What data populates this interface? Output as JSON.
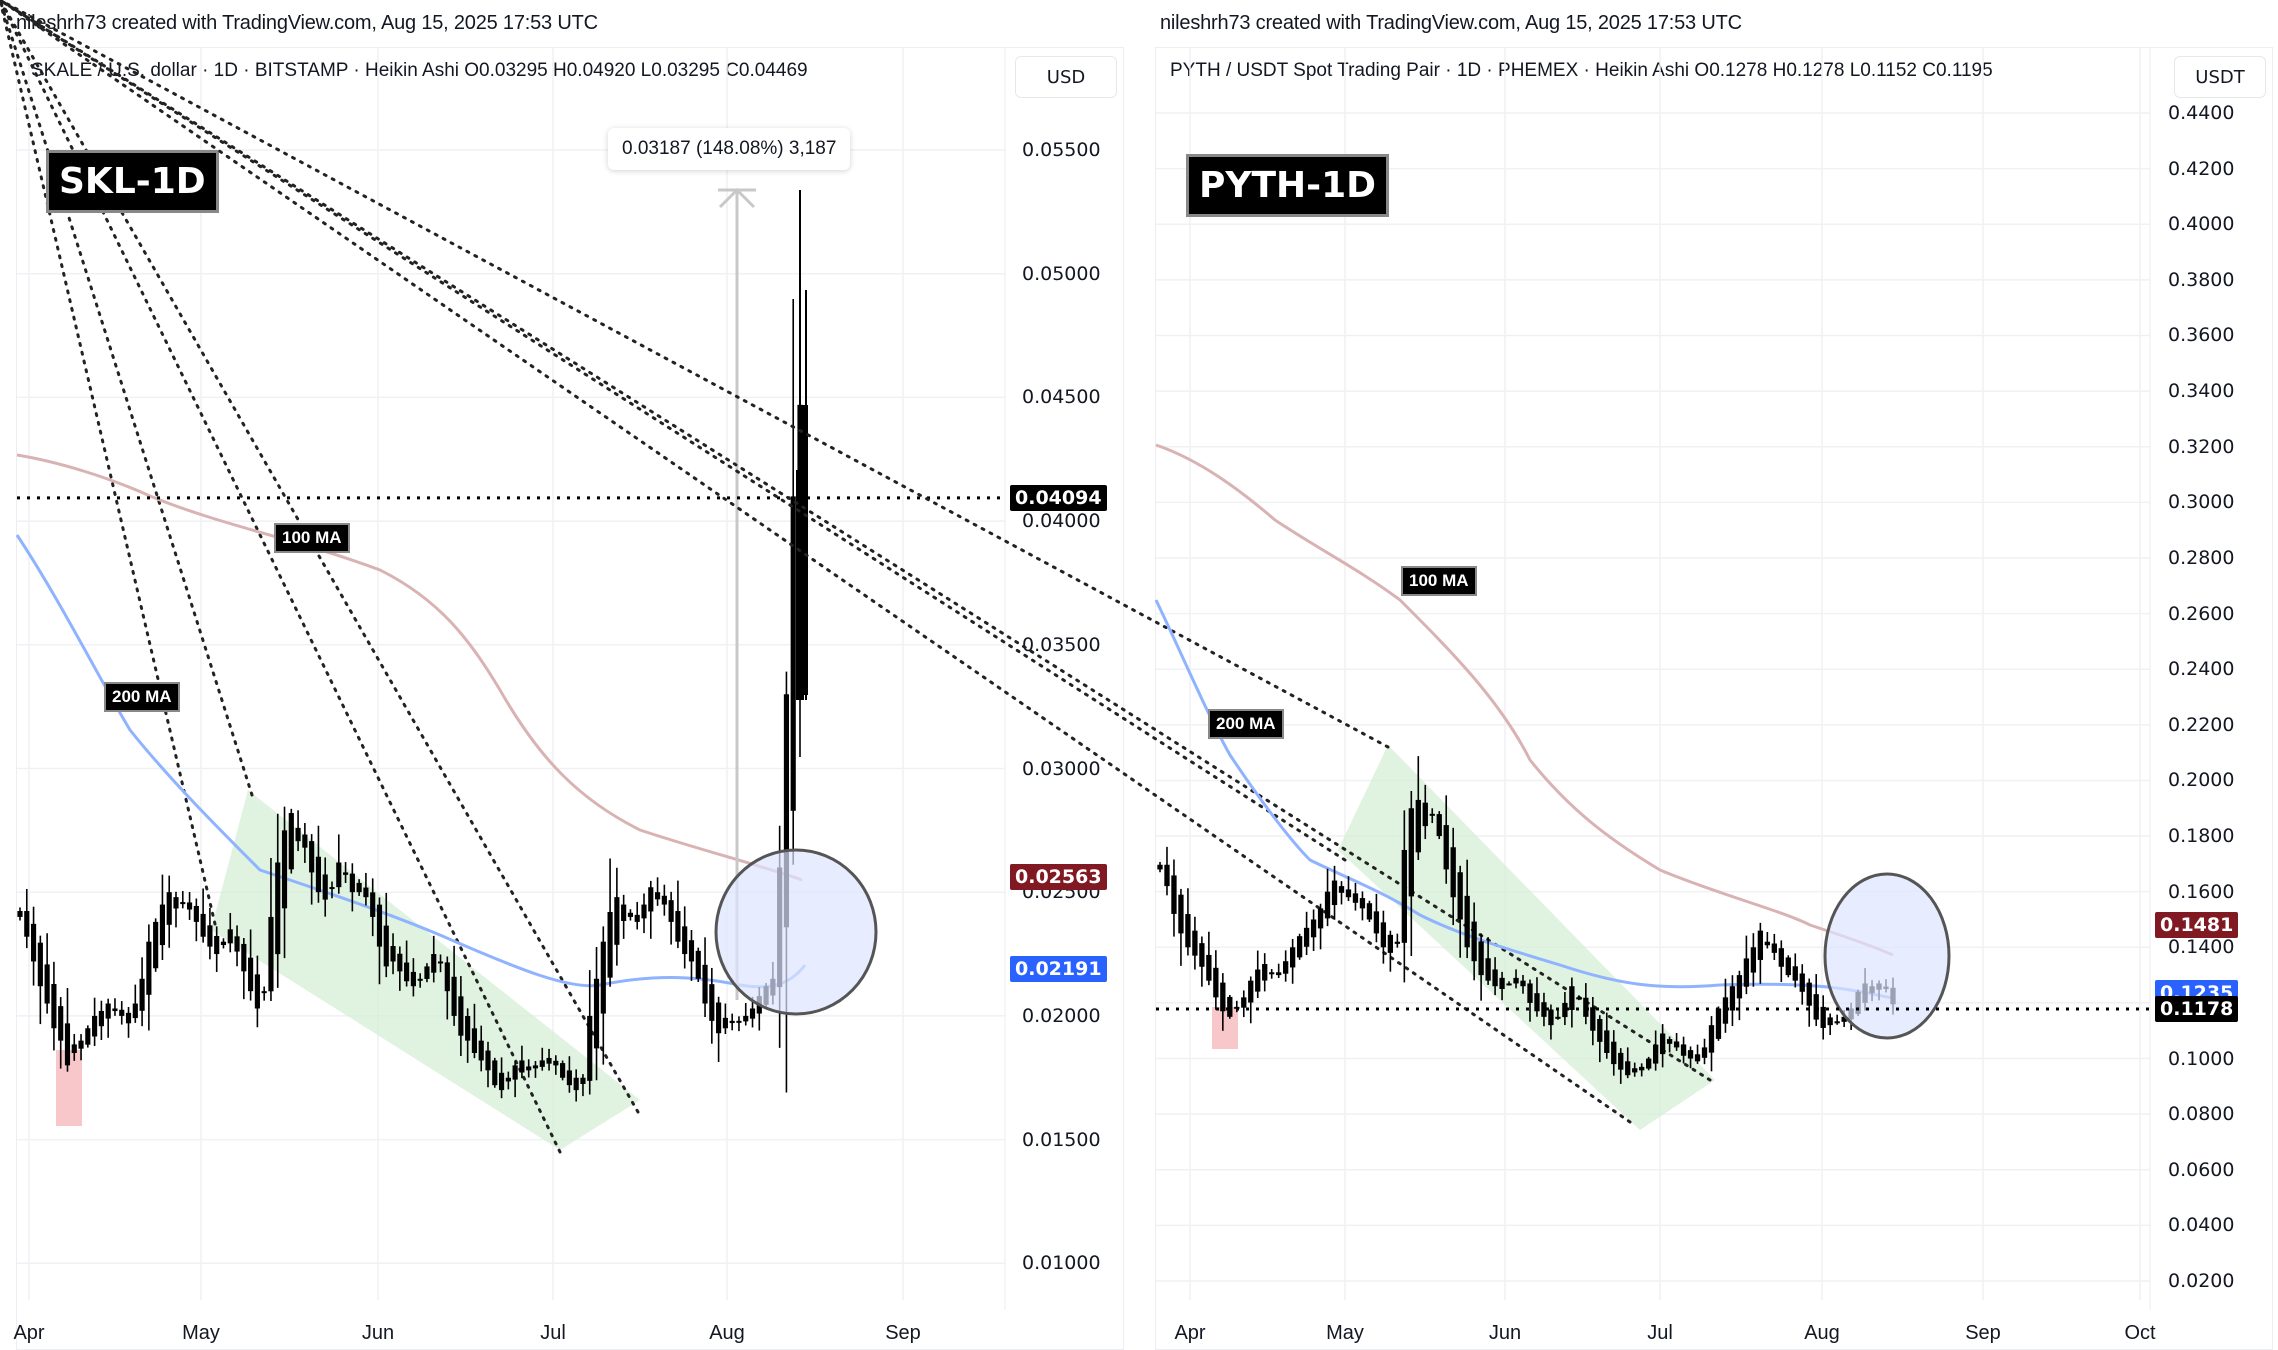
{
  "credits": {
    "left": "nileshrh73 created with TradingView.com, Aug 15, 2025 17:53 UTC",
    "right": "nileshrh73 created with TradingView.com, Aug 15, 2025 17:53 UTC"
  },
  "charts": {
    "skl": {
      "legend": "SKALE / U.S. dollar · 1D · BITSTAMP · Heikin Ashi  O0.03295  H0.04920  L0.03295  C0.04469",
      "currency": "USD",
      "title": "SKL-1D",
      "ma100_label": "100 MA",
      "ma200_label": "200 MA",
      "measure": "0.03187 (148.08%) 3,187",
      "tags": {
        "last": "0.04094",
        "ma100": "0.02563",
        "ma200": "0.02191"
      },
      "yticks": [
        "0.05500",
        "0.05000",
        "0.04500",
        "0.04000",
        "0.03500",
        "0.03000",
        "0.02500",
        "0.02000",
        "0.01500",
        "0.01000"
      ],
      "months": [
        "Apr",
        "May",
        "Jun",
        "Jul",
        "Aug",
        "Sep"
      ]
    },
    "pyth": {
      "legend": "PYTH / USDT Spot Trading Pair · 1D · PHEMEX · Heikin Ashi  O0.1278  H0.1278  L0.1152  C0.1195",
      "currency": "USDT",
      "title": "PYTH-1D",
      "ma100_label": "100 MA",
      "ma200_label": "200 MA",
      "tags": {
        "last": "0.1178",
        "ma100": "0.1481",
        "ma200": "0.1235"
      },
      "yticks": [
        "0.4400",
        "0.4200",
        "0.4000",
        "0.3800",
        "0.3600",
        "0.3400",
        "0.3200",
        "0.3000",
        "0.2800",
        "0.2600",
        "0.2400",
        "0.2200",
        "0.2000",
        "0.1800",
        "0.1600",
        "0.1400",
        "0.1200",
        "0.1000",
        "0.0800",
        "0.0600",
        "0.0400",
        "0.0200"
      ],
      "months": [
        "Apr",
        "May",
        "Jun",
        "Jul",
        "Aug",
        "Sep",
        "Oct"
      ]
    }
  },
  "colors": {
    "ma100": "#d9b3b3",
    "ma200": "#8fb3ff",
    "tag_ma100": "#801922",
    "tag_ma200": "#2962ff",
    "tag_last": "#000000",
    "channel_fill": "#d6edd6",
    "circle_fill": "#dde6ff",
    "pink_highlight": "#f8c7c9"
  },
  "chart_data": [
    {
      "type": "candlestick",
      "title": "SKALE / U.S. dollar · 1D · BITSTAMP · Heikin Ashi",
      "xlabel": "",
      "ylabel": "USD",
      "ylim": [
        0.0075,
        0.0575
      ],
      "x_ticks": [
        "Apr",
        "May",
        "Jun",
        "Jul",
        "Aug",
        "Sep"
      ],
      "y_ticks": [
        0.055,
        0.05,
        0.045,
        0.04,
        0.035,
        0.03,
        0.025,
        0.02,
        0.015,
        0.01
      ],
      "ohlc_last": {
        "open": 0.03295,
        "high": 0.0492,
        "low": 0.03295,
        "close": 0.04469
      },
      "annotations": [
        "SKL-1D",
        "100 MA",
        "200 MA",
        "0.03187 (148.08%) 3,187",
        "falling channel (green)",
        "circle at MA breakout"
      ],
      "price_lines": {
        "last": 0.04094,
        "ma100": 0.02563,
        "ma200": 0.02191
      },
      "close_series_approx": [
        0.024,
        0.0232,
        0.0222,
        0.0212,
        0.0205,
        0.0195,
        0.019,
        0.018,
        0.0185,
        0.019,
        0.0195,
        0.02,
        0.0202,
        0.0205,
        0.0203,
        0.02,
        0.0197,
        0.0205,
        0.0215,
        0.023,
        0.0238,
        0.0245,
        0.025,
        0.0248,
        0.0246,
        0.0243,
        0.0238,
        0.0232,
        0.0228,
        0.0225,
        0.023,
        0.0235,
        0.0226,
        0.0218,
        0.021,
        0.0203,
        0.021,
        0.024,
        0.0262,
        0.0275,
        0.0282,
        0.0276,
        0.0268,
        0.0258,
        0.025,
        0.0247,
        0.0252,
        0.0262,
        0.0258,
        0.025,
        0.025,
        0.0248,
        0.024,
        0.0228,
        0.022,
        0.0222,
        0.0218,
        0.0214,
        0.0212,
        0.0215,
        0.022,
        0.0225,
        0.0222,
        0.021,
        0.02,
        0.0192,
        0.019,
        0.0185,
        0.0182,
        0.0178,
        0.0172,
        0.017,
        0.0175,
        0.018,
        0.0182,
        0.0178,
        0.018,
        0.0182,
        0.0183,
        0.018,
        0.0175,
        0.0172,
        0.017,
        0.0175,
        0.02,
        0.0215,
        0.023,
        0.0242,
        0.0248,
        0.0245,
        0.024,
        0.0238,
        0.0245,
        0.0252,
        0.025,
        0.0245,
        0.0238,
        0.023,
        0.0225,
        0.0222,
        0.0215,
        0.0205,
        0.0198,
        0.0193,
        0.0195,
        0.0198,
        0.0198,
        0.02,
        0.0203,
        0.0208,
        0.0212,
        0.0215,
        0.026,
        0.033,
        0.041,
        0.0447
      ]
    },
    {
      "type": "candlestick",
      "title": "PYTH / USDT Spot Trading Pair · 1D · PHEMEX · Heikin Ashi",
      "xlabel": "",
      "ylabel": "USDT",
      "ylim": [
        0.01,
        0.445
      ],
      "x_ticks": [
        "Apr",
        "May",
        "Jun",
        "Jul",
        "Aug",
        "Sep",
        "Oct"
      ],
      "y_ticks": [
        0.44,
        0.42,
        0.4,
        0.38,
        0.36,
        0.34,
        0.32,
        0.3,
        0.28,
        0.26,
        0.24,
        0.22,
        0.2,
        0.18,
        0.16,
        0.14,
        0.12,
        0.1,
        0.08,
        0.06,
        0.04,
        0.02
      ],
      "ohlc_last": {
        "open": 0.1278,
        "high": 0.1278,
        "low": 0.1152,
        "close": 0.1195
      },
      "annotations": [
        "PYTH-1D",
        "100 MA",
        "200 MA",
        "falling channel (green)",
        "circle at MA test"
      ],
      "price_lines": {
        "last": 0.1178,
        "ma100": 0.1481,
        "ma200": 0.1235
      },
      "close_series_approx": [
        0.168,
        0.162,
        0.152,
        0.145,
        0.14,
        0.137,
        0.133,
        0.128,
        0.122,
        0.117,
        0.115,
        0.118,
        0.122,
        0.128,
        0.132,
        0.134,
        0.131,
        0.13,
        0.135,
        0.14,
        0.144,
        0.147,
        0.15,
        0.154,
        0.16,
        0.164,
        0.162,
        0.158,
        0.156,
        0.154,
        0.15,
        0.145,
        0.14,
        0.138,
        0.142,
        0.175,
        0.19,
        0.193,
        0.192,
        0.188,
        0.18,
        0.168,
        0.158,
        0.15,
        0.14,
        0.135,
        0.13,
        0.128,
        0.126,
        0.125,
        0.127,
        0.129,
        0.126,
        0.12,
        0.117,
        0.115,
        0.112,
        0.115,
        0.12,
        0.126,
        0.122,
        0.115,
        0.11,
        0.106,
        0.102,
        0.098,
        0.096,
        0.094,
        0.095,
        0.097,
        0.1,
        0.105,
        0.109,
        0.107,
        0.104,
        0.101,
        0.1,
        0.099,
        0.104,
        0.112,
        0.118,
        0.122,
        0.126,
        0.13,
        0.136,
        0.14,
        0.146,
        0.142,
        0.138,
        0.133,
        0.13,
        0.128,
        0.124,
        0.119,
        0.114,
        0.111,
        0.112,
        0.113,
        0.115,
        0.118,
        0.124,
        0.127,
        0.126,
        0.127,
        0.125,
        0.1195
      ]
    }
  ]
}
